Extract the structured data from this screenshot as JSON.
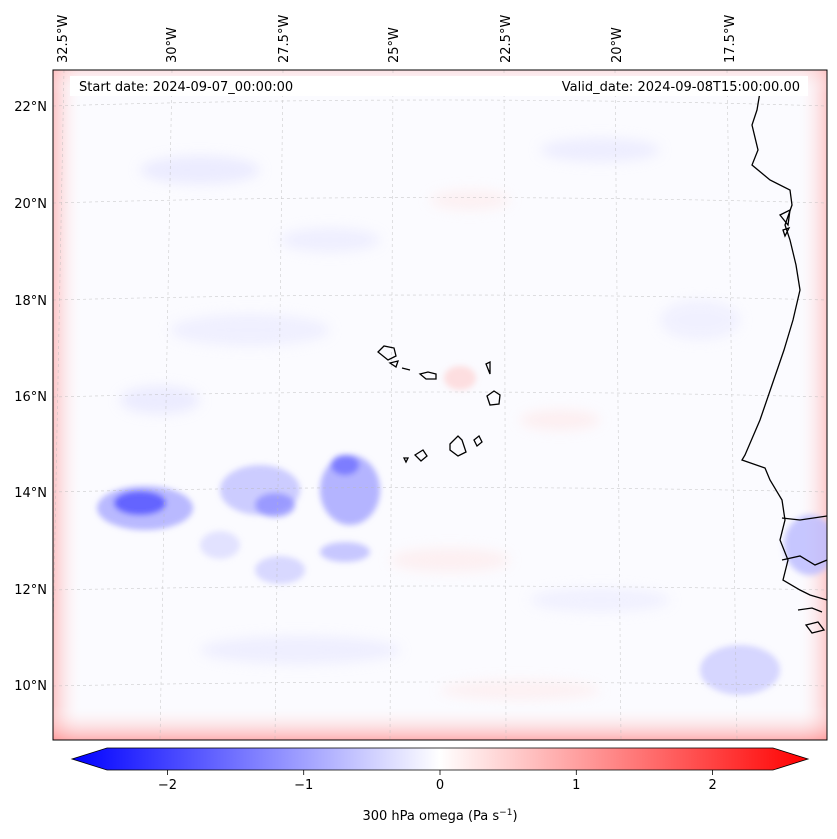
{
  "map": {
    "start_date": "Start date: 2024-09-07_00:00:00",
    "valid_date": "Valid_date: 2024-09-08T15:00:00.00",
    "lon_labels": [
      "32.5°W",
      "30°W",
      "27.5°W",
      "25°W",
      "22.5°W",
      "20°W",
      "17.5°W"
    ],
    "lat_labels": [
      "22°N",
      "20°N",
      "18°N",
      "16°N",
      "14°N",
      "12°N",
      "10°N"
    ]
  },
  "colorbar": {
    "label_prefix": "300 hPa omega (Pa s",
    "label_exp": "−1",
    "label_suffix": ")",
    "ticks": [
      "−2",
      "−1",
      "0",
      "1",
      "2"
    ],
    "min": -2.7,
    "max": 2.7,
    "tick_values": [
      -2,
      -1,
      0,
      1,
      2
    ],
    "colors": {
      "negative": "#0000ff",
      "zero": "#ffffff",
      "positive": "#ff0000"
    }
  },
  "chart_data": {
    "type": "heatmap",
    "variable": "300 hPa omega",
    "units": "Pa s^-1",
    "lon_range": [
      -32.7,
      -15.7
    ],
    "lat_range": [
      9,
      22.7
    ],
    "features": [
      {
        "kind": "ascent_blob",
        "lon": -31.0,
        "lat": 13.7,
        "value": -1.6
      },
      {
        "kind": "ascent_blob",
        "lon": -28.3,
        "lat": 13.8,
        "value": -0.9
      },
      {
        "kind": "ascent_blob",
        "lon": -25.8,
        "lat": 14.0,
        "value": -1.1
      },
      {
        "kind": "ascent_blob",
        "lon": -26.3,
        "lat": 12.7,
        "value": -0.6
      },
      {
        "kind": "ascent_blob",
        "lon": -16.0,
        "lat": 12.8,
        "value": -0.5
      },
      {
        "kind": "ascent_blob",
        "lon": -17.0,
        "lat": 10.2,
        "value": -0.4
      },
      {
        "kind": "descent_blob",
        "lon": -23.0,
        "lat": 16.2,
        "value": 0.2
      }
    ]
  }
}
